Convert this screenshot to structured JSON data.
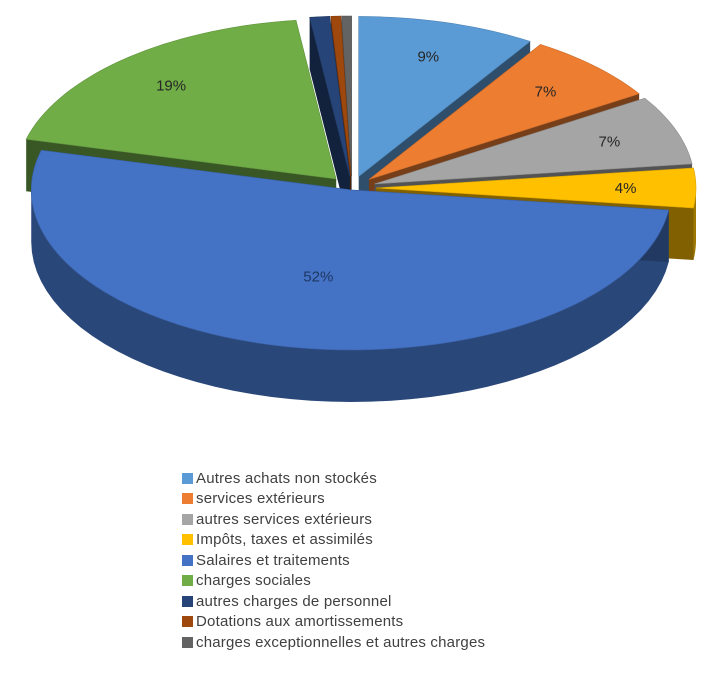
{
  "chart_data": {
    "type": "pie",
    "style": "3d-exploded",
    "legend_position": "bottom",
    "categories": [
      "Autres achats non stockés",
      "services extérieurs",
      "autres services extérieurs",
      "Impôts, taxes et assimilés",
      "Salaires et traitements",
      "charges sociales",
      "autres charges de personnel",
      "Dotations aux amortissements",
      "charges exceptionnelles et autres charges"
    ],
    "values": [
      9,
      7,
      7,
      4,
      52,
      19,
      1,
      0.5,
      0.5
    ],
    "data_labels": [
      "9%",
      "7%",
      "7%",
      "4%",
      "52%",
      "19%",
      "",
      "",
      ""
    ],
    "colors": [
      "#5B9BD5",
      "#ED7D31",
      "#A5A5A5",
      "#FFC000",
      "#4472C4",
      "#70AD47",
      "#264478",
      "#9E480E",
      "#636363"
    ]
  }
}
